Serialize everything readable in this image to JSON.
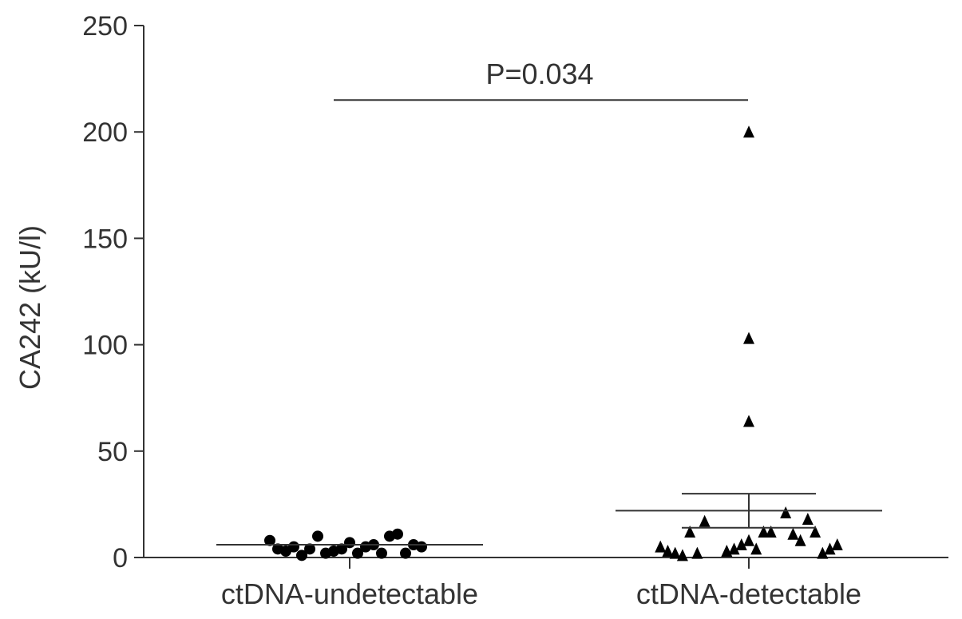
{
  "chart_data": {
    "type": "scatter",
    "ylabel": "CA242 (kU/l)",
    "ylim": [
      0,
      250
    ],
    "y_ticks": [
      "0",
      "50",
      "100",
      "150",
      "200",
      "250"
    ],
    "categories": [
      "ctDNA-undetectable",
      "ctDNA-detectable"
    ],
    "series": [
      {
        "category": "ctDNA-undetectable",
        "marker": "circle",
        "values": [
          7,
          4,
          2,
          3,
          5,
          2,
          6,
          10,
          2,
          4,
          10,
          1,
          11,
          5,
          2,
          3,
          6,
          4,
          5,
          8
        ],
        "mean": 6,
        "error_upper": 6,
        "error_lower": 6
      },
      {
        "category": "ctDNA-detectable",
        "marker": "triangle",
        "values": [
          8,
          6,
          4,
          4,
          12,
          3,
          12,
          200,
          103,
          64,
          21,
          17,
          11,
          2,
          8,
          12,
          18,
          1,
          12,
          2,
          2,
          3,
          4,
          5,
          6
        ],
        "mean": 22,
        "error_upper": 30,
        "error_lower": 14
      }
    ],
    "annotations": [
      {
        "text": "P=0.034",
        "y": 215
      }
    ],
    "grid": false,
    "legend": "none"
  },
  "colors": {
    "axis": "#333333",
    "marker": "#000000"
  }
}
